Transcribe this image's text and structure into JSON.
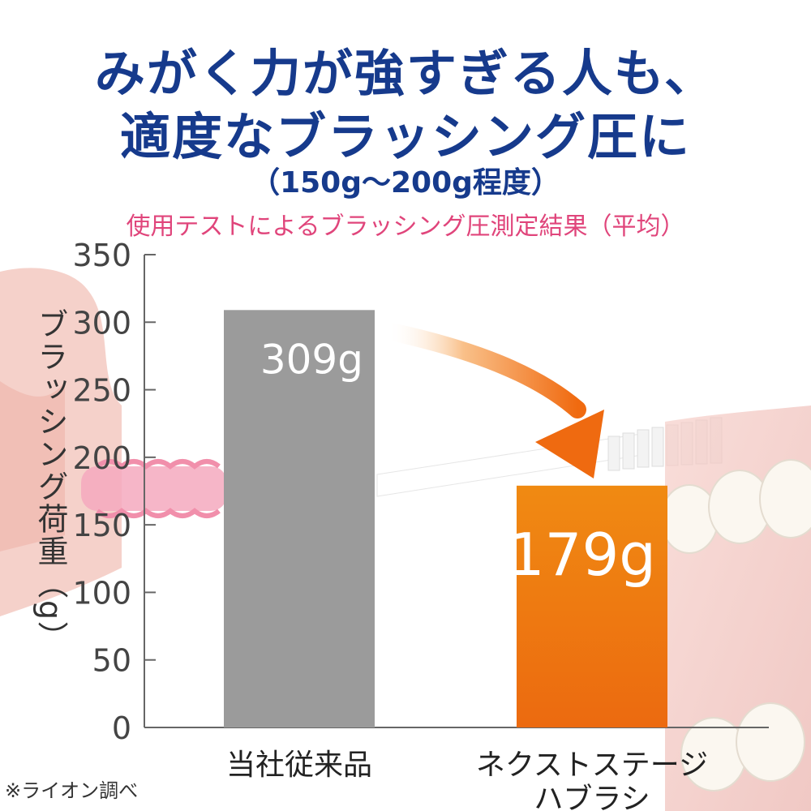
{
  "headline": {
    "line1": "みがく力が強すぎる人も、",
    "line2": "適度なブラッシング圧に",
    "line3": "（150g〜200g程度）"
  },
  "subtitle": "使用テストによるブラッシング圧測定結果（平均）",
  "footnote": "※ライオン調べ",
  "colors": {
    "headline": "#163a8c",
    "subtitle": "#e0457b",
    "bar_gray": "#9b9b9b",
    "bar_orange": "#ef7f12",
    "arrow": "#f07a1a"
  },
  "chart_data": {
    "type": "bar",
    "ylabel": "ブラッシング荷重（g）",
    "ylim": [
      0,
      350
    ],
    "yticks": [
      0,
      50,
      100,
      150,
      200,
      250,
      300,
      350
    ],
    "categories": [
      {
        "lines": [
          "当社従来品"
        ]
      },
      {
        "lines": [
          "ネクストステージ",
          "ハブラシ"
        ]
      }
    ],
    "values": [
      309,
      179
    ],
    "data_labels": [
      "309g",
      "179g"
    ],
    "grid": false
  }
}
